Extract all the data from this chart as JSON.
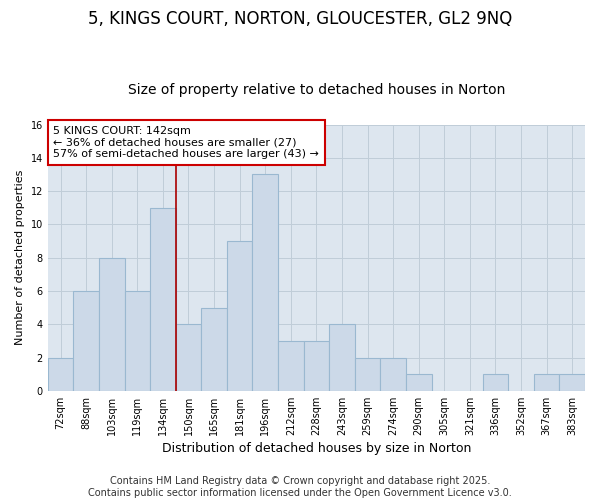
{
  "title": "5, KINGS COURT, NORTON, GLOUCESTER, GL2 9NQ",
  "subtitle": "Size of property relative to detached houses in Norton",
  "xlabel": "Distribution of detached houses by size in Norton",
  "ylabel": "Number of detached properties",
  "categories": [
    "72sqm",
    "88sqm",
    "103sqm",
    "119sqm",
    "134sqm",
    "150sqm",
    "165sqm",
    "181sqm",
    "196sqm",
    "212sqm",
    "228sqm",
    "243sqm",
    "259sqm",
    "274sqm",
    "290sqm",
    "305sqm",
    "321sqm",
    "336sqm",
    "352sqm",
    "367sqm",
    "383sqm"
  ],
  "values": [
    2,
    6,
    8,
    6,
    11,
    4,
    5,
    9,
    13,
    3,
    3,
    4,
    2,
    2,
    1,
    0,
    0,
    1,
    0,
    1,
    1
  ],
  "bar_color": "#ccd9e8",
  "bar_edge_color": "#9ab8d0",
  "vline_x_index": 4,
  "vline_color": "#aa0000",
  "annotation_text": "5 KINGS COURT: 142sqm\n← 36% of detached houses are smaller (27)\n57% of semi-detached houses are larger (43) →",
  "annotation_box_color": "#ffffff",
  "annotation_box_edge": "#cc0000",
  "ylim": [
    0,
    16
  ],
  "yticks": [
    0,
    2,
    4,
    6,
    8,
    10,
    12,
    14,
    16
  ],
  "grid_color": "#c0cdd8",
  "bg_color": "#dde6ef",
  "footer": "Contains HM Land Registry data © Crown copyright and database right 2025.\nContains public sector information licensed under the Open Government Licence v3.0.",
  "title_fontsize": 12,
  "subtitle_fontsize": 10,
  "xlabel_fontsize": 9,
  "ylabel_fontsize": 8,
  "tick_fontsize": 7,
  "annotation_fontsize": 8,
  "footer_fontsize": 7
}
